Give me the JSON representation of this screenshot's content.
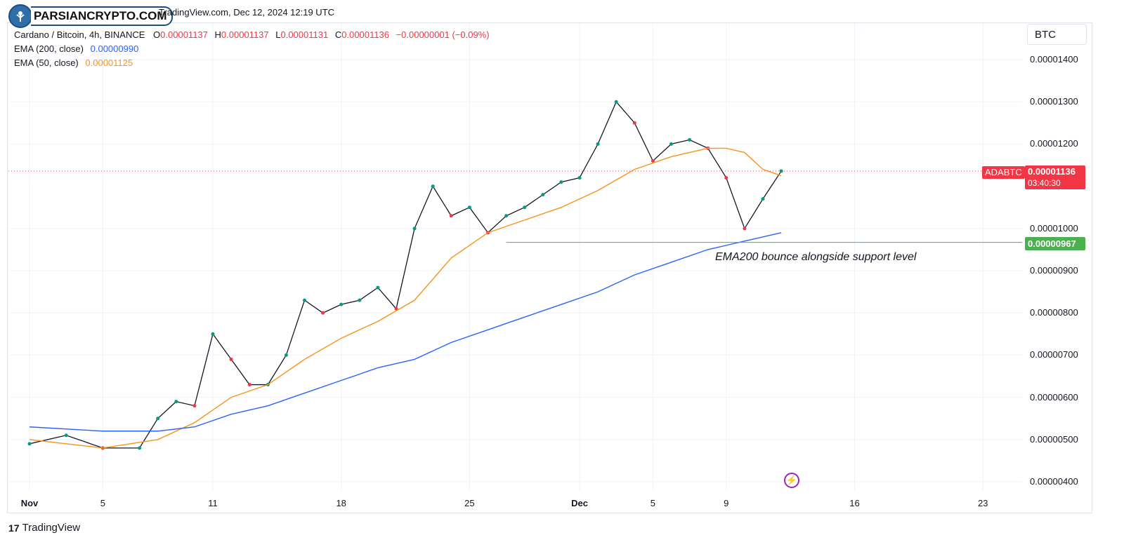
{
  "watermark": {
    "brand": "PARSIANCRYPTO.COM"
  },
  "header": {
    "source_line": "TradingView.com, Dec 12, 2024 12:19 UTC",
    "symbol": "Cardano / Bitcoin, 4h, BINANCE",
    "open_label": "O",
    "open": "0.00001137",
    "high_label": "H",
    "high": "0.00001137",
    "low_label": "L",
    "low": "0.00001131",
    "close_label": "C",
    "close": "0.00001136",
    "change": "−0.00000001 (−0.09%)",
    "ema200_label": "EMA (200, close)",
    "ema200_value": "0.00000990",
    "ema50_label": "EMA (50, close)",
    "ema50_value": "0.00001125"
  },
  "currency": "BTC",
  "price_axis": [
    "0.00001400",
    "0.00001300",
    "0.00001200",
    "0.00001000",
    "0.00000900",
    "0.00000800",
    "0.00000700",
    "0.00000600",
    "0.00000500",
    "0.00000400"
  ],
  "price_tags": {
    "symbol_tag": "ADABTC",
    "last_price": "0.00001136",
    "countdown": "03:40:30",
    "support": "0.00000967"
  },
  "annotation": "EMA200 bounce alongside support level",
  "footer_brand": "TradingView",
  "colors": {
    "up": "#089981",
    "down": "#f23645",
    "ema200": "#2962ff",
    "ema50": "#f7931a",
    "support": "#4caf50",
    "grid": "#f0f3fa"
  },
  "chart_data": {
    "type": "line",
    "title": "Cardano / Bitcoin, 4h, BINANCE",
    "x_ticks": [
      "Nov",
      "5",
      "11",
      "18",
      "25",
      "Dec",
      "5",
      "9",
      "16",
      "23"
    ],
    "ylim": [
      3.8e-06,
      1.48e-05
    ],
    "grid": true,
    "support_level": 9.67e-06,
    "series": [
      {
        "name": "Cardano / Bitcoin",
        "x": [
          "Nov 1",
          "Nov 3",
          "Nov 5",
          "Nov 7",
          "Nov 8",
          "Nov 9",
          "Nov 10",
          "Nov 11",
          "Nov 12",
          "Nov 13",
          "Nov 14",
          "Nov 15",
          "Nov 16",
          "Nov 17",
          "Nov 18",
          "Nov 19",
          "Nov 20",
          "Nov 21",
          "Nov 22",
          "Nov 23",
          "Nov 24",
          "Nov 25",
          "Nov 26",
          "Nov 27",
          "Nov 28",
          "Nov 29",
          "Nov 30",
          "Dec 1",
          "Dec 2",
          "Dec 3",
          "Dec 4",
          "Dec 5",
          "Dec 6",
          "Dec 7",
          "Dec 8",
          "Dec 9",
          "Dec 10",
          "Dec 11",
          "Dec 12"
        ],
        "values": [
          4.9e-06,
          5.1e-06,
          4.8e-06,
          4.8e-06,
          5.5e-06,
          5.9e-06,
          5.8e-06,
          7.5e-06,
          6.9e-06,
          6.3e-06,
          6.3e-06,
          7e-06,
          8.3e-06,
          8e-06,
          8.2e-06,
          8.3e-06,
          8.6e-06,
          8.1e-06,
          1e-05,
          1.1e-05,
          1.03e-05,
          1.05e-05,
          9.9e-06,
          1.03e-05,
          1.05e-05,
          1.08e-05,
          1.11e-05,
          1.12e-05,
          1.2e-05,
          1.3e-05,
          1.25e-05,
          1.16e-05,
          1.2e-05,
          1.21e-05,
          1.19e-05,
          1.12e-05,
          1e-05,
          1.07e-05,
          1.136e-05
        ]
      },
      {
        "name": "EMA (50, close)",
        "x": [
          "Nov 1",
          "Nov 5",
          "Nov 8",
          "Nov 10",
          "Nov 12",
          "Nov 14",
          "Nov 16",
          "Nov 18",
          "Nov 20",
          "Nov 22",
          "Nov 24",
          "Nov 26",
          "Nov 28",
          "Nov 30",
          "Dec 2",
          "Dec 4",
          "Dec 6",
          "Dec 8",
          "Dec 9",
          "Dec 10",
          "Dec 11",
          "Dec 12"
        ],
        "values": [
          5e-06,
          4.8e-06,
          5e-06,
          5.4e-06,
          6e-06,
          6.3e-06,
          6.9e-06,
          7.4e-06,
          7.8e-06,
          8.3e-06,
          9.3e-06,
          9.9e-06,
          1.02e-05,
          1.05e-05,
          1.09e-05,
          1.14e-05,
          1.17e-05,
          1.19e-05,
          1.19e-05,
          1.18e-05,
          1.14e-05,
          1.125e-05
        ]
      },
      {
        "name": "EMA (200, close)",
        "x": [
          "Nov 1",
          "Nov 5",
          "Nov 8",
          "Nov 10",
          "Nov 12",
          "Nov 14",
          "Nov 16",
          "Nov 18",
          "Nov 20",
          "Nov 22",
          "Nov 24",
          "Nov 26",
          "Nov 28",
          "Nov 30",
          "Dec 2",
          "Dec 4",
          "Dec 6",
          "Dec 8",
          "Dec 9",
          "Dec 10",
          "Dec 11",
          "Dec 12"
        ],
        "values": [
          5.3e-06,
          5.2e-06,
          5.2e-06,
          5.3e-06,
          5.6e-06,
          5.8e-06,
          6.1e-06,
          6.4e-06,
          6.7e-06,
          6.9e-06,
          7.3e-06,
          7.6e-06,
          7.9e-06,
          8.2e-06,
          8.5e-06,
          8.9e-06,
          9.2e-06,
          9.5e-06,
          9.6e-06,
          9.7e-06,
          9.8e-06,
          9.9e-06
        ]
      }
    ]
  }
}
